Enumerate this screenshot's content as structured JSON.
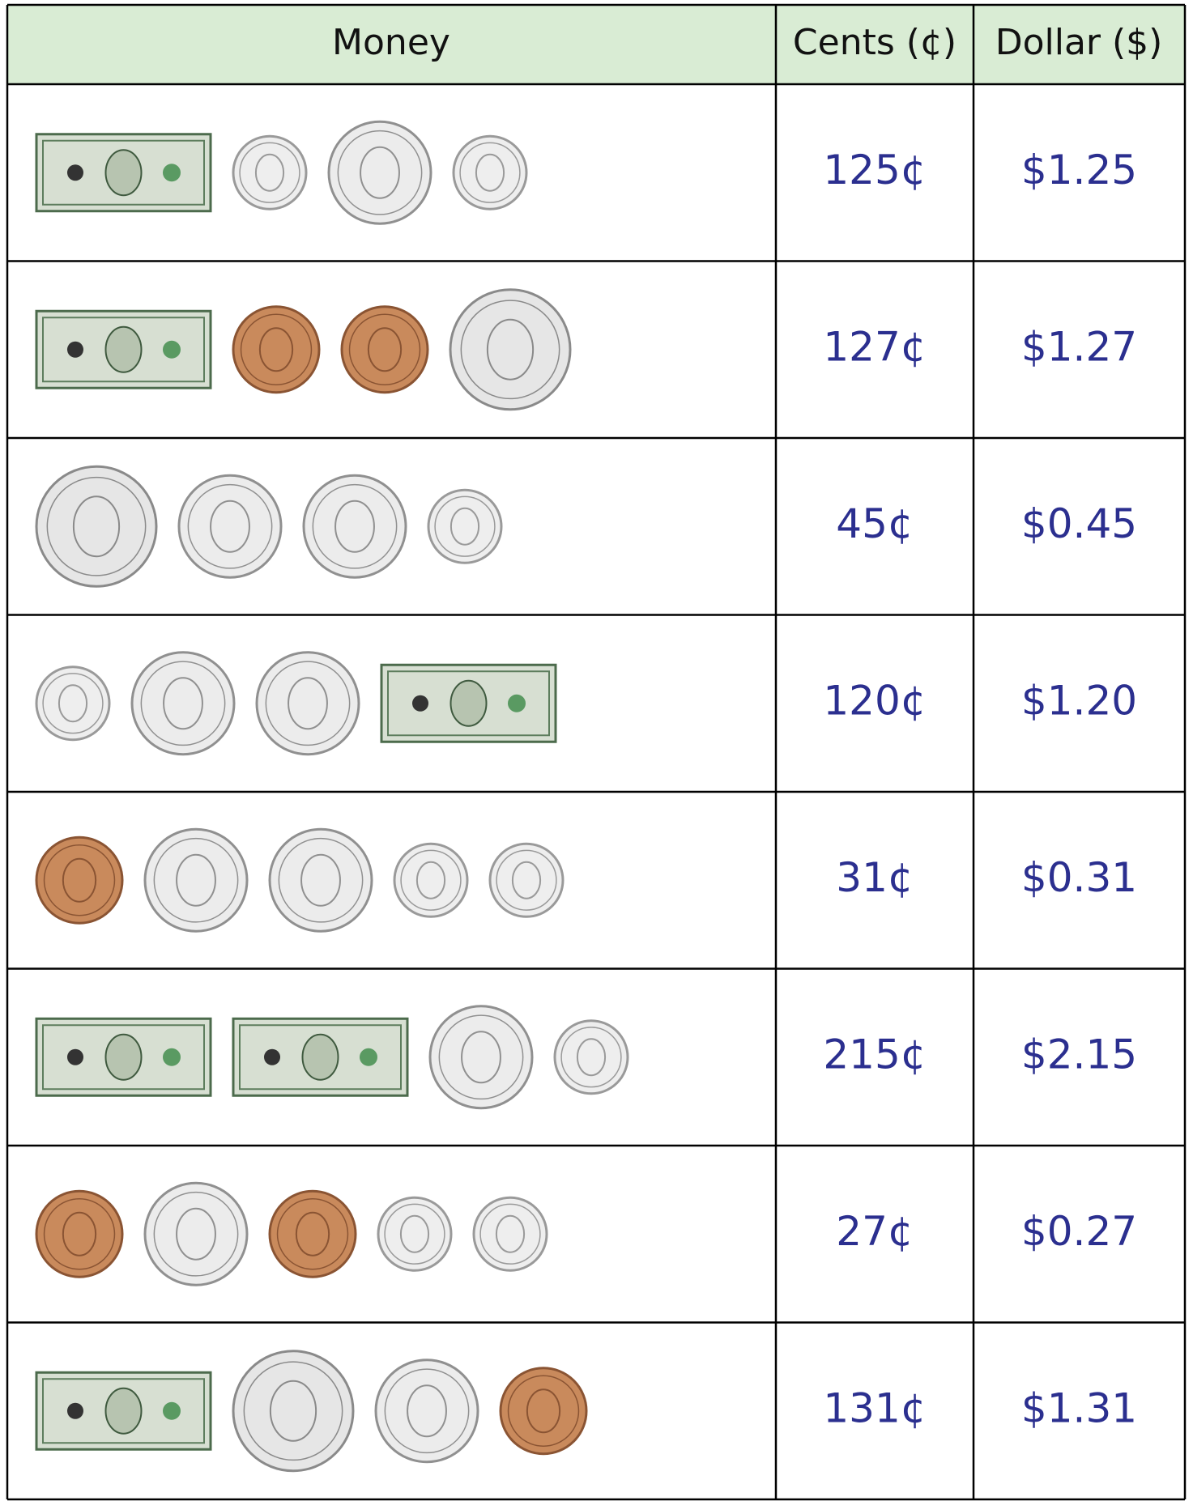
{
  "header": [
    "Money",
    "Cents (¢)",
    "Dollar ($)"
  ],
  "rows": [
    [
      "125¢",
      "$1.25"
    ],
    [
      "127¢",
      "$1.27"
    ],
    [
      "45¢",
      "$0.45"
    ],
    [
      "120¢",
      "$1.20"
    ],
    [
      "31¢",
      "$0.31"
    ],
    [
      "215¢",
      "$2.15"
    ],
    [
      "27¢",
      "$0.27"
    ],
    [
      "131¢",
      "$1.31"
    ]
  ]
}
